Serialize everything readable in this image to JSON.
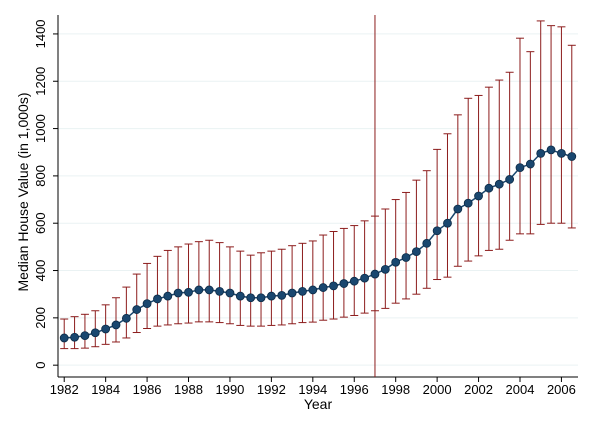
{
  "chart_data": {
    "type": "line",
    "xlabel": "Year",
    "ylabel": "Median House Value (in 1,000s)",
    "xlim": [
      1981.7,
      2006.8
    ],
    "ylim": [
      -50,
      1480
    ],
    "x_ticks": [
      1982,
      1984,
      1986,
      1988,
      1990,
      1992,
      1994,
      1996,
      1998,
      2000,
      2002,
      2004,
      2006
    ],
    "y_ticks": [
      0,
      200,
      400,
      600,
      800,
      1000,
      1200,
      1400
    ],
    "grid": "horizontal",
    "reference_line_x": 1997,
    "colors": {
      "line": "#1a476f",
      "marker": "#1a476f",
      "error_bar": "#8c1c1c",
      "reference_line": "#8c1c1c",
      "grid": "#eaf2f3"
    },
    "series": [
      {
        "x": [
          1982.0,
          1982.5,
          1983.0,
          1983.5,
          1984.0,
          1984.5,
          1985.0,
          1985.5,
          1986.0,
          1986.5,
          1987.0,
          1987.5,
          1988.0,
          1988.5,
          1989.0,
          1989.5,
          1990.0,
          1990.5,
          1991.0,
          1991.5,
          1992.0,
          1992.5,
          1993.0,
          1993.5,
          1994.0,
          1994.5,
          1995.0,
          1995.5,
          1996.0,
          1996.5,
          1997.0,
          1997.5,
          1998.0,
          1998.5,
          1999.0,
          1999.5,
          2000.0,
          2000.5,
          2001.0,
          2001.5,
          2002.0,
          2002.5,
          2003.0,
          2003.5,
          2004.0,
          2004.5,
          2005.0,
          2005.5,
          2006.0,
          2006.5
        ],
        "values": [
          115,
          118,
          125,
          137,
          153,
          170,
          198,
          235,
          260,
          280,
          292,
          305,
          308,
          318,
          318,
          312,
          305,
          292,
          285,
          285,
          292,
          295,
          305,
          312,
          318,
          328,
          335,
          345,
          355,
          368,
          385,
          405,
          435,
          455,
          480,
          515,
          568,
          600,
          660,
          685,
          715,
          748,
          765,
          785,
          835,
          850,
          895,
          910,
          895,
          882
        ],
        "lower": [
          70,
          70,
          72,
          78,
          88,
          98,
          115,
          138,
          155,
          165,
          170,
          175,
          178,
          183,
          183,
          180,
          175,
          168,
          165,
          165,
          168,
          170,
          175,
          180,
          182,
          190,
          195,
          203,
          210,
          220,
          230,
          240,
          262,
          280,
          300,
          325,
          362,
          372,
          418,
          440,
          462,
          485,
          490,
          528,
          555,
          555,
          595,
          600,
          600,
          580
        ],
        "upper": [
          195,
          205,
          215,
          230,
          255,
          285,
          330,
          385,
          430,
          460,
          485,
          500,
          512,
          522,
          528,
          518,
          500,
          482,
          465,
          475,
          482,
          490,
          505,
          515,
          525,
          550,
          565,
          578,
          590,
          610,
          630,
          660,
          700,
          730,
          782,
          822,
          912,
          978,
          1058,
          1128,
          1140,
          1175,
          1205,
          1238,
          1382,
          1325,
          1455,
          1435,
          1430,
          1352
        ]
      }
    ]
  }
}
